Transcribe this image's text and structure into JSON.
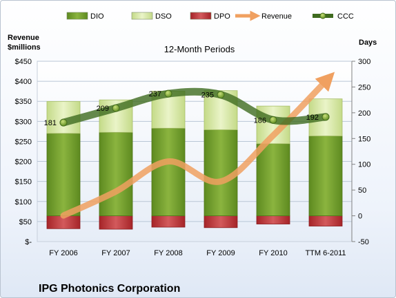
{
  "chart_data": {
    "type": "bar",
    "title": "12-Month Periods",
    "company": "IPG Photonics Corporation",
    "left_axis_title": "Revenue\n$millions",
    "right_axis_title": "Days",
    "left_ticks": [
      "$-",
      "$50",
      "$100",
      "$150",
      "$200",
      "$250",
      "$300",
      "$350",
      "$400",
      "$450"
    ],
    "right_ticks": [
      "-50",
      "0",
      "50",
      "100",
      "150",
      "200",
      "250",
      "300"
    ],
    "ylim_left": [
      0,
      450
    ],
    "ylim_right": [
      -50,
      300
    ],
    "categories": [
      "FY 2006",
      "FY 2007",
      "FY 2008",
      "FY 2009",
      "FY 2010",
      "TTM 6-2011"
    ],
    "legend": [
      "DIO",
      "DSO",
      "DPO",
      "Revenue",
      "CCC"
    ],
    "legend_position": "top",
    "colors": {
      "DIO": "#6e9a2a",
      "DSO": "#d6e7a6",
      "DPO": "#b83236",
      "Revenue": "#f0a060",
      "CCC": "#3f6b1f"
    },
    "series": [
      {
        "name": "DIO",
        "axis": "right",
        "values": [
          160,
          162,
          170,
          167,
          140,
          155
        ]
      },
      {
        "name": "DSO",
        "axis": "right",
        "values": [
          62,
          63,
          72,
          76,
          73,
          72
        ]
      },
      {
        "name": "DPO",
        "axis": "right",
        "values": [
          -25,
          -26,
          -22,
          -23,
          -16,
          -20
        ]
      },
      {
        "name": "Revenue",
        "axis": "left",
        "values": [
          65,
          125,
          200,
          150,
          265,
          400
        ]
      },
      {
        "name": "CCC",
        "axis": "right",
        "values": [
          181,
          209,
          237,
          235,
          186,
          192
        ]
      }
    ],
    "ccc_labels": [
      "181",
      "209",
      "237",
      "235",
      "186",
      "192"
    ]
  }
}
